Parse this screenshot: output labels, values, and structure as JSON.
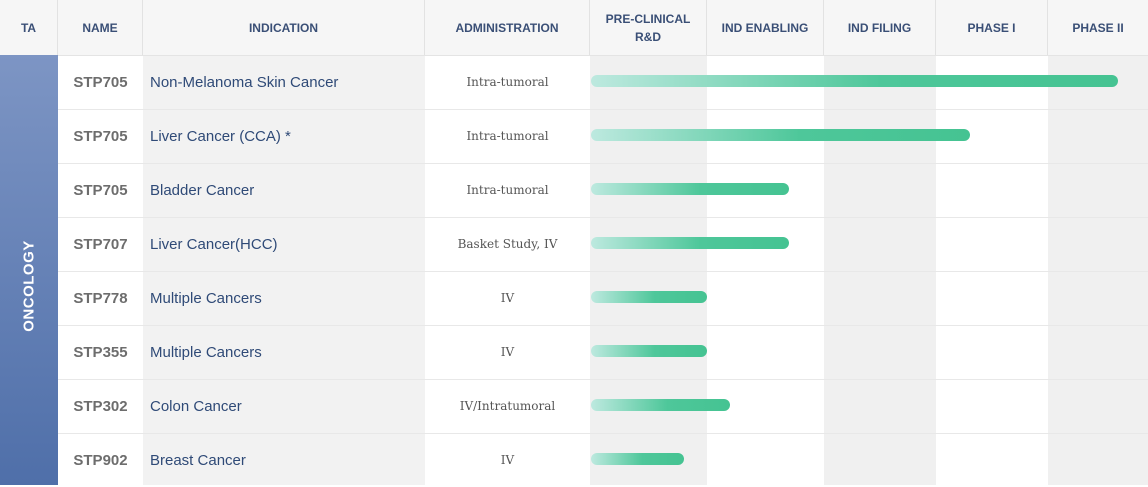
{
  "header": {
    "ta": "TA",
    "name": "NAME",
    "indication": "INDICATION",
    "administration": "ADMINISTRATION",
    "stages": [
      "PRE-CLINICAL\nR&D",
      "IND ENABLING",
      "IND FILING",
      "PHASE I",
      "PHASE II"
    ]
  },
  "therapeutic_area": "ONCOLOGY",
  "colors": {
    "header_text": "#3a4f76",
    "ta_band_top": "#7d95c4",
    "ta_band_bottom": "#4f6fa9",
    "bar_start": "#bde9df",
    "bar_end": "#45c392",
    "shaded_column": "#f0f0f0"
  },
  "rows": [
    {
      "name": "STP705",
      "indication": "Non-Melanoma Skin Cancer",
      "administration": "Intra-tumoral"
    },
    {
      "name": "STP705",
      "indication": "Liver Cancer (CCA) *",
      "administration": "Intra-tumoral"
    },
    {
      "name": "STP705",
      "indication": "Bladder Cancer",
      "administration": "Intra-tumoral"
    },
    {
      "name": "STP707",
      "indication": "Liver Cancer(HCC)",
      "administration": "Basket Study, IV"
    },
    {
      "name": "STP778",
      "indication": "Multiple Cancers",
      "administration": "IV"
    },
    {
      "name": "STP355",
      "indication": "Multiple Cancers",
      "administration": "IV"
    },
    {
      "name": "STP302",
      "indication": "Colon Cancer",
      "administration": "IV/Intratumoral"
    },
    {
      "name": "STP902",
      "indication": "Breast Cancer",
      "administration": "IV"
    }
  ],
  "chart_data": {
    "type": "bar",
    "orientation": "horizontal",
    "x_categories": [
      "PRE-CLINICAL R&D",
      "IND ENABLING",
      "IND FILING",
      "PHASE I",
      "PHASE II"
    ],
    "categories": [
      "STP705 Non-Melanoma Skin Cancer",
      "STP705 Liver Cancer (CCA) *",
      "STP705 Bladder Cancer",
      "STP707 Liver Cancer(HCC)",
      "STP778 Multiple Cancers",
      "STP355 Multiple Cancers",
      "STP302 Colon Cancer",
      "STP902 Breast Cancer"
    ],
    "values": [
      4.7,
      3.3,
      1.7,
      1.7,
      1.0,
      1.0,
      1.2,
      0.8
    ],
    "value_unit": "stages completed (0 = start of Pre-Clinical R&D, 5 = end of Phase II)",
    "xlim": [
      0,
      5
    ],
    "grid": false
  }
}
